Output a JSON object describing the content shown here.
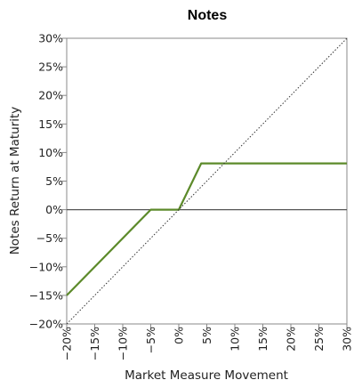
{
  "chart_data": {
    "type": "line",
    "title": "Notes",
    "xlabel": "Market Measure Movement",
    "ylabel": "Notes Return at Maturity",
    "xlim": [
      -20,
      30
    ],
    "ylim": [
      -20,
      30
    ],
    "x_ticks": [
      -20,
      -15,
      -10,
      -5,
      0,
      5,
      10,
      15,
      20,
      25,
      30
    ],
    "y_ticks": [
      30,
      25,
      20,
      15,
      10,
      5,
      0,
      -5,
      -10,
      -15,
      -20
    ],
    "x_tick_labels": [
      "−20%",
      "−15%",
      "−10%",
      "−5%",
      "0%",
      "5%",
      "10%",
      "15%",
      "20%",
      "25%",
      "30%"
    ],
    "y_tick_labels": [
      "30%",
      "25%",
      "20%",
      "15%",
      "10%",
      "5%",
      "0%",
      "−5%",
      "−10%",
      "−15%",
      "−20%"
    ],
    "grid": false,
    "series": [
      {
        "color": "#5c8a2a",
        "style": "solid",
        "points": [
          [
            -20,
            -15
          ],
          [
            -5,
            0
          ],
          [
            0,
            0
          ],
          [
            4,
            8.1
          ],
          [
            30,
            8.1
          ]
        ]
      },
      {
        "color": "#333333",
        "style": "dotted",
        "points": [
          [
            -20,
            -20
          ],
          [
            30,
            30
          ]
        ]
      }
    ],
    "reference_line": {
      "y": 0,
      "color": "#555555"
    }
  }
}
